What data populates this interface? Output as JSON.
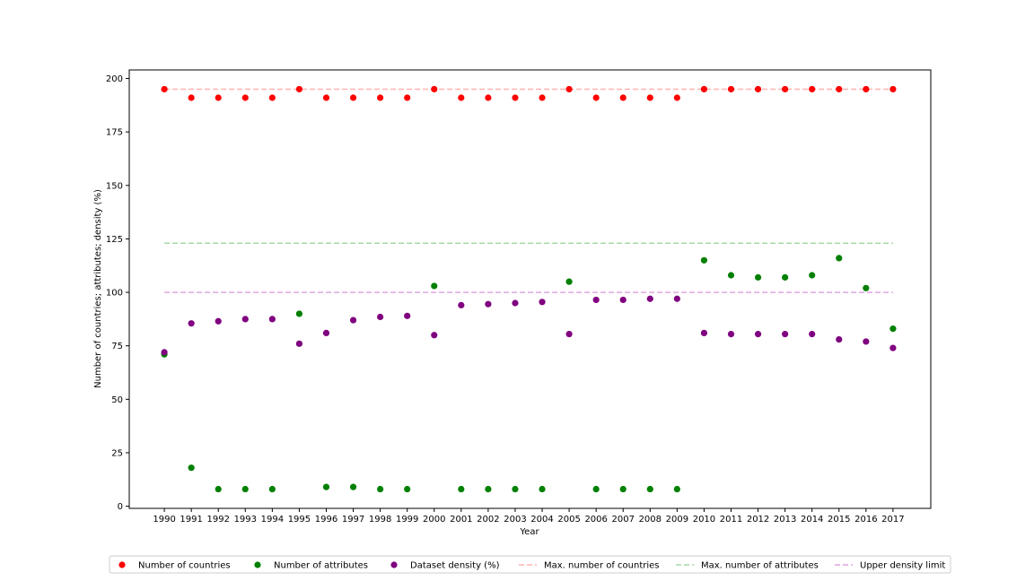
{
  "chart_data": {
    "type": "scatter",
    "xlabel": "Year",
    "ylabel": "Number of countries; attributes; density (%)",
    "ylim": [
      -1,
      204
    ],
    "yticks": [
      0,
      25,
      50,
      75,
      100,
      125,
      150,
      175,
      200
    ],
    "x": [
      1990,
      1991,
      1992,
      1993,
      1994,
      1995,
      1996,
      1997,
      1998,
      1999,
      2000,
      2001,
      2002,
      2003,
      2004,
      2005,
      2006,
      2007,
      2008,
      2009,
      2010,
      2011,
      2012,
      2013,
      2014,
      2015,
      2016,
      2017
    ],
    "xlim": [
      1988.7,
      2018.4
    ],
    "grid": false,
    "legend_position": "bottom-center",
    "series": [
      {
        "name": "Number of countries",
        "color": "#ff0000",
        "values": [
          195,
          191,
          191,
          191,
          191,
          195,
          191,
          191,
          191,
          191,
          195,
          191,
          191,
          191,
          191,
          195,
          191,
          191,
          191,
          191,
          195,
          195,
          195,
          195,
          195,
          195,
          195,
          195
        ]
      },
      {
        "name": "Number of attributes",
        "color": "#008000",
        "values": [
          71,
          18,
          8,
          8,
          8,
          90,
          9,
          9,
          8,
          8,
          103,
          8,
          8,
          8,
          8,
          105,
          8,
          8,
          8,
          8,
          115,
          108,
          107,
          107,
          108,
          116,
          102,
          83
        ]
      },
      {
        "name": "Dataset density (%)",
        "color": "#800080",
        "values": [
          72,
          85.5,
          86.5,
          87.5,
          87.5,
          76,
          81,
          87,
          88.5,
          89,
          80,
          94,
          94.5,
          95,
          95.5,
          80.5,
          96.5,
          96.5,
          97,
          97,
          81,
          80.5,
          80.5,
          80.5,
          80.5,
          78,
          77,
          74
        ]
      }
    ],
    "reference_lines": [
      {
        "name": "Max. number of countries",
        "value": 195,
        "color": "#ffb3b3"
      },
      {
        "name": "Max. number of attributes",
        "value": 123,
        "color": "#a6d9a6"
      },
      {
        "name": "Upper density limit",
        "value": 100,
        "color": "#e0a6e0"
      }
    ]
  }
}
